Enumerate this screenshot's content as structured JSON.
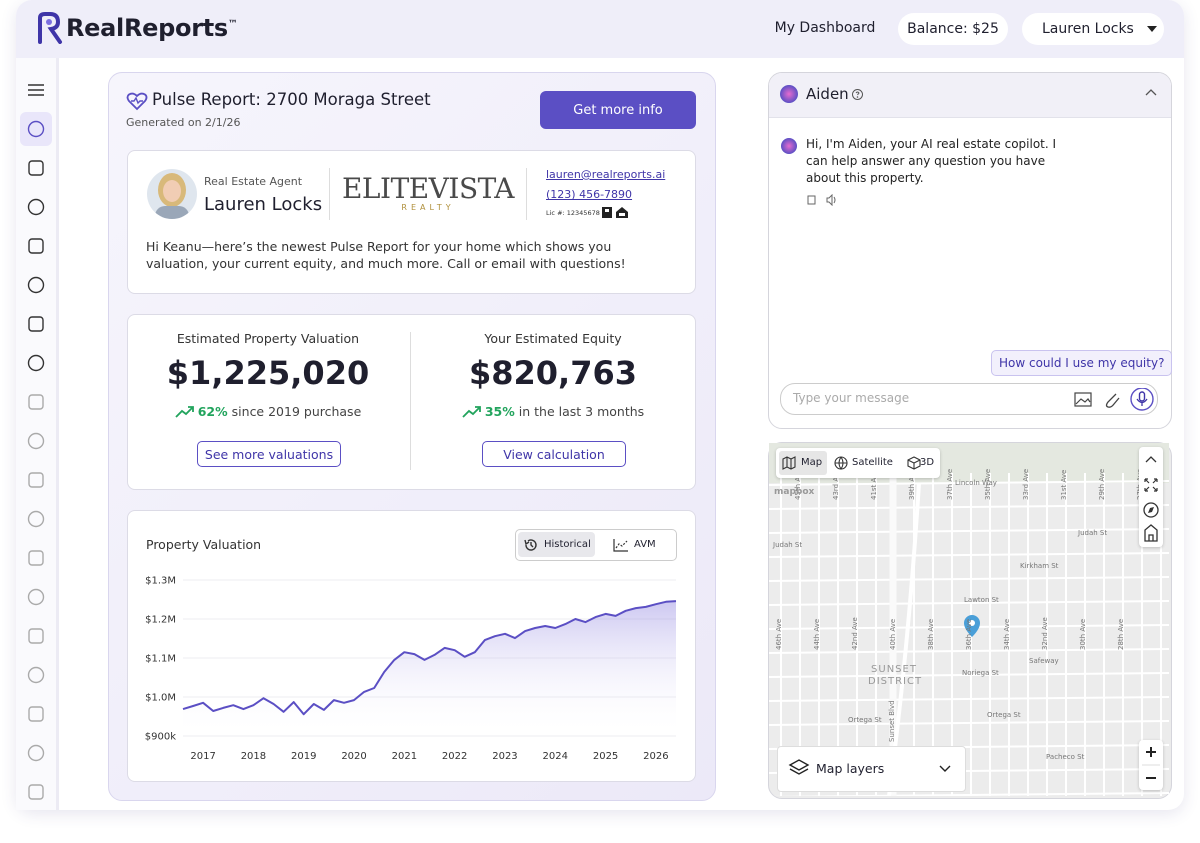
{
  "header": {
    "logo": "RealReports",
    "logo_tm": "™",
    "nav": "My Dashboard",
    "balance": "Balance: $25",
    "user": "Lauren Locks"
  },
  "report": {
    "title": "Pulse Report: 2700 Moraga Street",
    "generated": "Generated on 2/1/26",
    "button": "Get more info",
    "agent": {
      "role": "Real Estate Agent",
      "name": "Lauren Locks",
      "brand": "ELITEVISTA",
      "brand_sub": "REALTY",
      "email": "lauren@realreports.ai",
      "phone": "(123) 456-7890",
      "license": "Lic #: 12345678",
      "message": "Hi Keanu—here’s the newest Pulse Report for your home which shows you valuation, your current equity, and much more. Call or email with questions!"
    },
    "metrics": [
      {
        "label": "Estimated Property Valuation",
        "value": "$1,225,020",
        "change": "62%",
        "change_text": "since 2019 purchase",
        "button": "See more valuations"
      },
      {
        "label": "Your Estimated Equity",
        "value": "$820,763",
        "change": "35%",
        "change_text": "in the last 3 months",
        "button": "View calculation"
      }
    ]
  },
  "chart_data": {
    "type": "line",
    "title": "Property Valuation",
    "toggles": [
      "Historical",
      "AVM"
    ],
    "color": "#5b4fc4",
    "grid": true,
    "x": [
      2016.6,
      2016.8,
      2017.0,
      2017.2,
      2017.4,
      2017.6,
      2017.8,
      2018.0,
      2018.2,
      2018.4,
      2018.6,
      2018.8,
      2019.0,
      2019.2,
      2019.4,
      2019.6,
      2019.8,
      2020.0,
      2020.2,
      2020.4,
      2020.6,
      2020.8,
      2021.0,
      2021.2,
      2021.4,
      2021.6,
      2021.8,
      2022.0,
      2022.2,
      2022.4,
      2022.6,
      2022.8,
      2023.0,
      2023.2,
      2023.4,
      2023.6,
      2023.8,
      2024.0,
      2024.2,
      2024.4,
      2024.6,
      2024.8,
      2025.0,
      2025.2,
      2025.4,
      2025.6,
      2025.8,
      2026.0,
      2026.2,
      2026.4
    ],
    "values": [
      969000,
      977000,
      985000,
      964000,
      972000,
      979000,
      969000,
      979000,
      997000,
      982000,
      962000,
      987000,
      956000,
      982000,
      967000,
      992000,
      985000,
      992000,
      1013000,
      1023000,
      1064000,
      1095000,
      1115000,
      1110000,
      1095000,
      1108000,
      1126000,
      1120000,
      1103000,
      1115000,
      1146000,
      1156000,
      1162000,
      1151000,
      1169000,
      1177000,
      1182000,
      1177000,
      1187000,
      1200000,
      1192000,
      1205000,
      1213000,
      1208000,
      1221000,
      1228000,
      1231000,
      1238000,
      1244000,
      1246000
    ],
    "xlim": [
      2016.6,
      2026.4
    ],
    "xticks": [
      2017,
      2018,
      2019,
      2020,
      2021,
      2022,
      2023,
      2024,
      2025,
      2026
    ],
    "ylim": [
      900000,
      1300000
    ],
    "yticks": [
      {
        "value": 900000,
        "label": "$900k"
      },
      {
        "value": 1000000,
        "label": "$1.0M"
      },
      {
        "value": 1100000,
        "label": "$1.1M"
      },
      {
        "value": 1200000,
        "label": "$1.2M"
      },
      {
        "value": 1300000,
        "label": "$1.3M"
      }
    ]
  },
  "assistant": {
    "name": "Aiden",
    "message": "Hi, I'm Aiden, your AI real estate copilot. I can help answer any question you have about this property.",
    "suggestion": "How could I use my equity?",
    "placeholder": "Type your message"
  },
  "map": {
    "modes": [
      "Map",
      "Satellite",
      "3D"
    ],
    "attribution": "mapbox",
    "layers": "Map layers",
    "district": "SUNSET DISTRICT",
    "boulevard": "Sunset Blvd",
    "streets": [
      "Lincoln Way",
      "Judah St",
      "Judah St",
      "Kirkham St",
      "Lawton St",
      "Noriega St",
      "Safeway",
      "Ortega St",
      "Ortega St",
      "Pacheco St"
    ],
    "avenues": [
      "46th Ave",
      "45th Ave",
      "44th Ave",
      "43rd Ave",
      "42nd Ave",
      "41st Ave",
      "40th Ave",
      "39th Ave",
      "38th Ave",
      "37th Ave",
      "36th Ave",
      "35th Ave",
      "34th Ave",
      "33rd Ave",
      "32nd Ave",
      "31st Ave",
      "30th Ave",
      "29th Ave",
      "28th Ave",
      "27th Ave"
    ]
  }
}
